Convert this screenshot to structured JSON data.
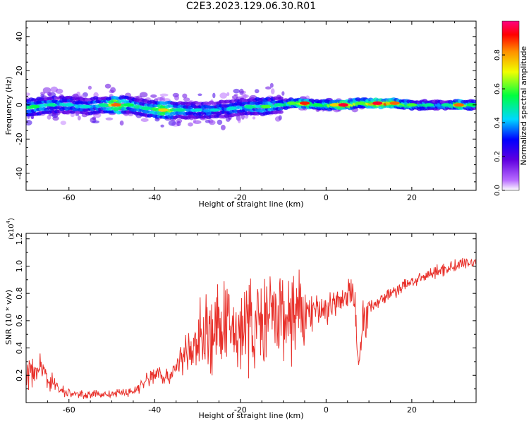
{
  "title": "C2E3.2023.129.06.30.R01",
  "chart_data": [
    {
      "type": "heatmap",
      "xlabel": "Height of straight line (km)",
      "ylabel": "Frequency (Hz)",
      "xlim": [
        -70,
        35
      ],
      "ylim": [
        -50,
        49
      ],
      "xticks": [
        -60,
        -40,
        -20,
        0,
        20
      ],
      "yticks": [
        -40,
        -20,
        0,
        20,
        40
      ],
      "x_tick_labels": [
        "-60",
        "-40",
        "-20",
        "0",
        "20"
      ],
      "y_tick_labels": [
        "-40",
        "-20",
        "0",
        "20",
        "40"
      ],
      "colorbar": {
        "label": "Normalized spectral amplitude",
        "range": [
          0,
          1
        ],
        "ticks": [
          0.0,
          0.2,
          0.4,
          0.6,
          0.8
        ],
        "tick_labels": [
          "0.0",
          "0.2",
          "0.4",
          "0.6",
          "0.8"
        ]
      },
      "ridge": [
        {
          "x": -68,
          "f": -1,
          "a": 0.55
        },
        {
          "x": -64,
          "f": 0,
          "a": 0.5
        },
        {
          "x": -60,
          "f": 0,
          "a": 0.45
        },
        {
          "x": -56,
          "f": -1,
          "a": 0.45
        },
        {
          "x": -52,
          "f": 0,
          "a": 0.5
        },
        {
          "x": -49,
          "f": 0,
          "a": 0.85
        },
        {
          "x": -46,
          "f": 0,
          "a": 0.55
        },
        {
          "x": -42,
          "f": -2,
          "a": 0.5
        },
        {
          "x": -38,
          "f": -3,
          "a": 0.75
        },
        {
          "x": -34,
          "f": -3,
          "a": 0.5
        },
        {
          "x": -30,
          "f": -3,
          "a": 0.45
        },
        {
          "x": -26,
          "f": -3,
          "a": 0.45
        },
        {
          "x": -22,
          "f": -2,
          "a": 0.45
        },
        {
          "x": -18,
          "f": -1,
          "a": 0.5
        },
        {
          "x": -14,
          "f": -1,
          "a": 0.6
        },
        {
          "x": -11,
          "f": 0,
          "a": 0.5
        },
        {
          "x": -8,
          "f": 1,
          "a": 0.6
        },
        {
          "x": -5,
          "f": 1,
          "a": 0.9
        },
        {
          "x": -2,
          "f": 0,
          "a": 0.55
        },
        {
          "x": 2,
          "f": 0,
          "a": 0.75
        },
        {
          "x": 4,
          "f": 0,
          "a": 0.95
        },
        {
          "x": 8,
          "f": 1,
          "a": 0.6
        },
        {
          "x": 12,
          "f": 1,
          "a": 0.95
        },
        {
          "x": 16,
          "f": 1,
          "a": 0.85
        },
        {
          "x": 20,
          "f": 0,
          "a": 0.6
        },
        {
          "x": 24,
          "f": 0,
          "a": 0.5
        },
        {
          "x": 28,
          "f": 0,
          "a": 0.5
        },
        {
          "x": 31,
          "f": 0,
          "a": 0.85
        },
        {
          "x": 34,
          "f": 0,
          "a": 0.55
        }
      ]
    },
    {
      "type": "line",
      "xlabel": "Height of straight line (km)",
      "ylabel": "SNR (10 * v/v)",
      "y_multiplier_label": "(x10",
      "y_multiplier_exponent": "4",
      "xlim": [
        -70,
        35
      ],
      "ylim": [
        0,
        12400
      ],
      "xticks": [
        -60,
        -40,
        -20,
        0,
        20
      ],
      "yticks": [
        2000,
        4000,
        6000,
        8000,
        10000,
        12000
      ],
      "x_tick_labels": [
        "-60",
        "-40",
        "-20",
        "0",
        "20"
      ],
      "y_tick_labels": [
        "0.2",
        "0.4",
        "0.6",
        "0.8",
        "1.0",
        "1.2"
      ],
      "color": "#e8302a",
      "series": [
        {
          "x": [
            -70,
            -68,
            -66,
            -64,
            -62,
            -60,
            -58,
            -55,
            -52,
            -50,
            -48,
            -45,
            -43,
            -41,
            -39,
            -37,
            -35,
            -33,
            -31,
            -30,
            -29,
            -28,
            -26,
            -24,
            -22,
            -20,
            -18,
            -16,
            -14,
            -12,
            -10,
            -8,
            -6,
            -4,
            -2,
            0,
            1,
            3,
            5,
            6,
            7,
            7.5,
            8,
            8.5,
            9,
            10,
            12,
            14,
            16,
            18,
            20,
            22,
            24,
            26,
            28,
            30,
            32,
            35
          ],
          "y": [
            2000,
            2500,
            2200,
            1600,
            900,
            700,
            600,
            600,
            600,
            600,
            700,
            800,
            1300,
            1800,
            2300,
            1700,
            2700,
            3500,
            3800,
            4200,
            5400,
            5000,
            5000,
            5600,
            5200,
            5500,
            5700,
            5800,
            6000,
            6200,
            6200,
            6300,
            6500,
            6700,
            6700,
            6800,
            7100,
            7200,
            7800,
            8200,
            6400,
            2800,
            4000,
            6200,
            6000,
            7000,
            7400,
            7800,
            8100,
            8500,
            8900,
            9000,
            9400,
            9600,
            9800,
            10000,
            10200,
            10300
          ]
        }
      ]
    }
  ]
}
